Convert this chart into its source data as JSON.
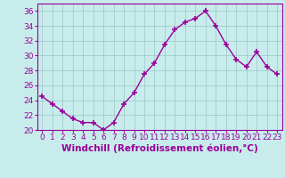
{
  "x": [
    0,
    1,
    2,
    3,
    4,
    5,
    6,
    7,
    8,
    9,
    10,
    11,
    12,
    13,
    14,
    15,
    16,
    17,
    18,
    19,
    20,
    21,
    22,
    23
  ],
  "y": [
    24.5,
    23.5,
    22.5,
    21.5,
    21.0,
    21.0,
    20.0,
    21.0,
    23.5,
    25.0,
    27.5,
    29.0,
    31.5,
    33.5,
    34.5,
    35.0,
    36.0,
    34.0,
    31.5,
    29.5,
    28.5,
    30.5,
    28.5,
    27.5
  ],
  "line_color": "#990099",
  "marker": "+",
  "markersize": 4,
  "linewidth": 1.0,
  "bg_color": "#c8ecec",
  "grid_color": "#a0cccc",
  "xlabel": "Windchill (Refroidissement éolien,°C)",
  "ylabel": "",
  "ylim": [
    20,
    37
  ],
  "xlim": [
    -0.5,
    23.5
  ],
  "yticks": [
    20,
    22,
    24,
    26,
    28,
    30,
    32,
    34,
    36
  ],
  "xticks": [
    0,
    1,
    2,
    3,
    4,
    5,
    6,
    7,
    8,
    9,
    10,
    11,
    12,
    13,
    14,
    15,
    16,
    17,
    18,
    19,
    20,
    21,
    22,
    23
  ],
  "tick_color": "#990099",
  "label_color": "#990099",
  "tick_fontsize": 6.5,
  "xlabel_fontsize": 7.5
}
